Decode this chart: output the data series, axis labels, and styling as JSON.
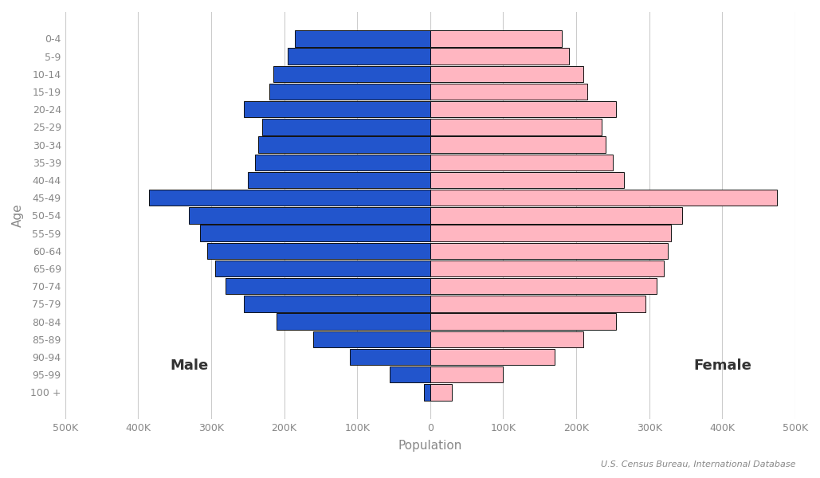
{
  "age_groups": [
    "0-4",
    "5-9",
    "10-14",
    "15-19",
    "20-24",
    "25-29",
    "30-34",
    "35-39",
    "40-44",
    "45-49",
    "50-54",
    "55-59",
    "60-64",
    "65-69",
    "70-74",
    "75-79",
    "80-84",
    "85-89",
    "90-94",
    "95-99",
    "100 +"
  ],
  "male": [
    185000,
    195000,
    215000,
    220000,
    255000,
    230000,
    235000,
    240000,
    250000,
    385000,
    330000,
    315000,
    305000,
    295000,
    280000,
    255000,
    210000,
    160000,
    110000,
    55000,
    8000
  ],
  "female": [
    180000,
    190000,
    210000,
    215000,
    255000,
    235000,
    240000,
    250000,
    265000,
    475000,
    345000,
    330000,
    325000,
    320000,
    310000,
    295000,
    255000,
    210000,
    170000,
    100000,
    30000
  ],
  "male_color": "#2255CC",
  "female_color": "#FFB6C1",
  "male_edge_color": "#111111",
  "female_edge_color": "#111111",
  "xlabel": "Population",
  "ylabel": "Age",
  "xlim": [
    -500000,
    500000
  ],
  "xtick_labels": [
    "500K",
    "400K",
    "300K",
    "200K",
    "100K",
    "0",
    "100K",
    "200K",
    "300K",
    "400K",
    "500K"
  ],
  "xtick_values": [
    -500000,
    -400000,
    -300000,
    -200000,
    -100000,
    0,
    100000,
    200000,
    300000,
    400000,
    500000
  ],
  "male_label": "Male",
  "female_label": "Female",
  "source_text": "U.S. Census Bureau, International Database",
  "bar_height": 0.92,
  "background_color": "#ffffff",
  "grid_color": "#cccccc",
  "text_color": "#888888",
  "label_fontsize": 13,
  "tick_fontsize": 9,
  "axis_label_fontsize": 11
}
